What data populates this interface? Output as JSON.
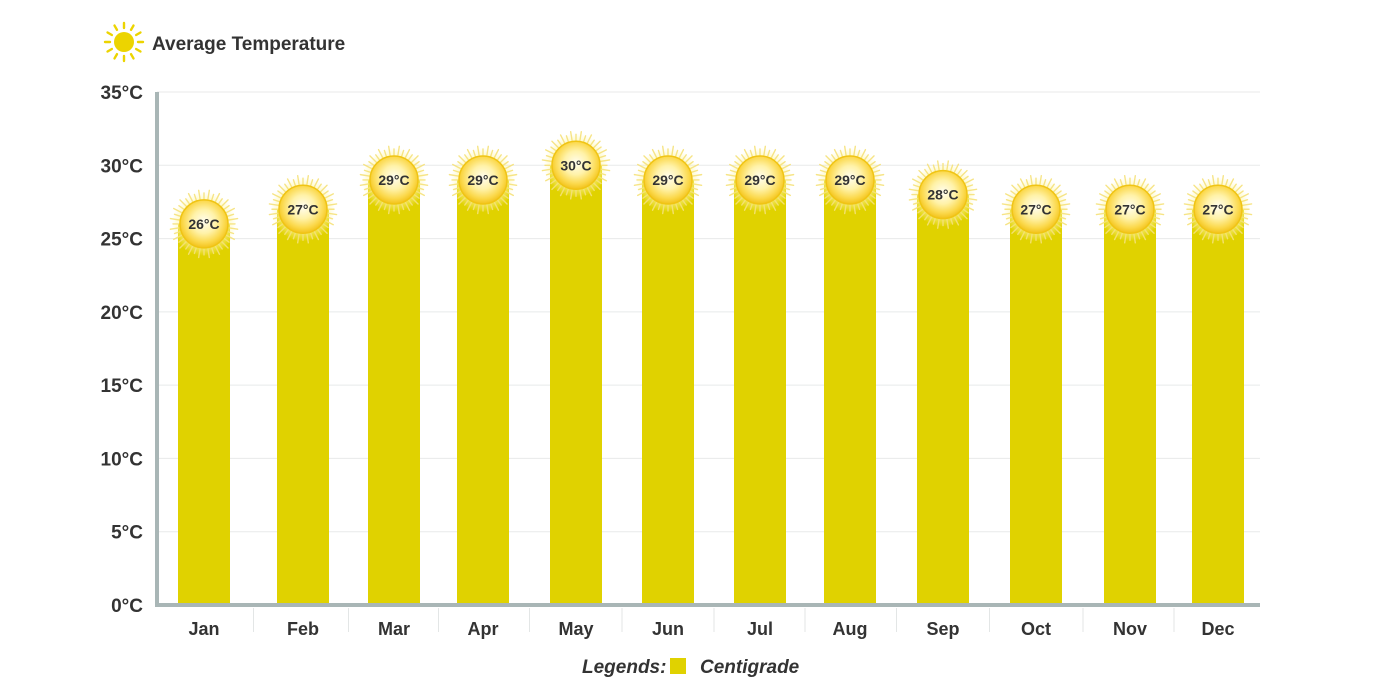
{
  "chart_data": {
    "type": "bar",
    "title": "Average Temperature",
    "title_icon": "sun-icon",
    "categories": [
      "Jan",
      "Feb",
      "Mar",
      "Apr",
      "May",
      "Jun",
      "Jul",
      "Aug",
      "Sep",
      "Oct",
      "Nov",
      "Dec"
    ],
    "values": [
      26,
      27,
      29,
      29,
      30,
      29,
      29,
      29,
      28,
      27,
      27,
      27
    ],
    "data_labels": [
      "26°C",
      "27°C",
      "29°C",
      "29°C",
      "30°C",
      "29°C",
      "29°C",
      "29°C",
      "28°C",
      "27°C",
      "27°C",
      "27°C"
    ],
    "y_ticks": [
      0,
      5,
      10,
      15,
      20,
      25,
      30,
      35
    ],
    "y_tick_labels": [
      "0°C",
      "5°C",
      "10°C",
      "15°C",
      "20°C",
      "25°C",
      "30°C",
      "35°C"
    ],
    "ylim": [
      0,
      35
    ],
    "grid": true,
    "legend_position": "bottom-center",
    "legend_title": "Legends:",
    "series": [
      {
        "name": "Centigrade",
        "values": [
          26,
          27,
          29,
          29,
          30,
          29,
          29,
          29,
          28,
          27,
          27,
          27
        ]
      }
    ],
    "colors": {
      "bar": "#e0d200",
      "axis": "#a9b6b6",
      "grid": "#e8eaea",
      "sun": "#f7d23a"
    }
  }
}
